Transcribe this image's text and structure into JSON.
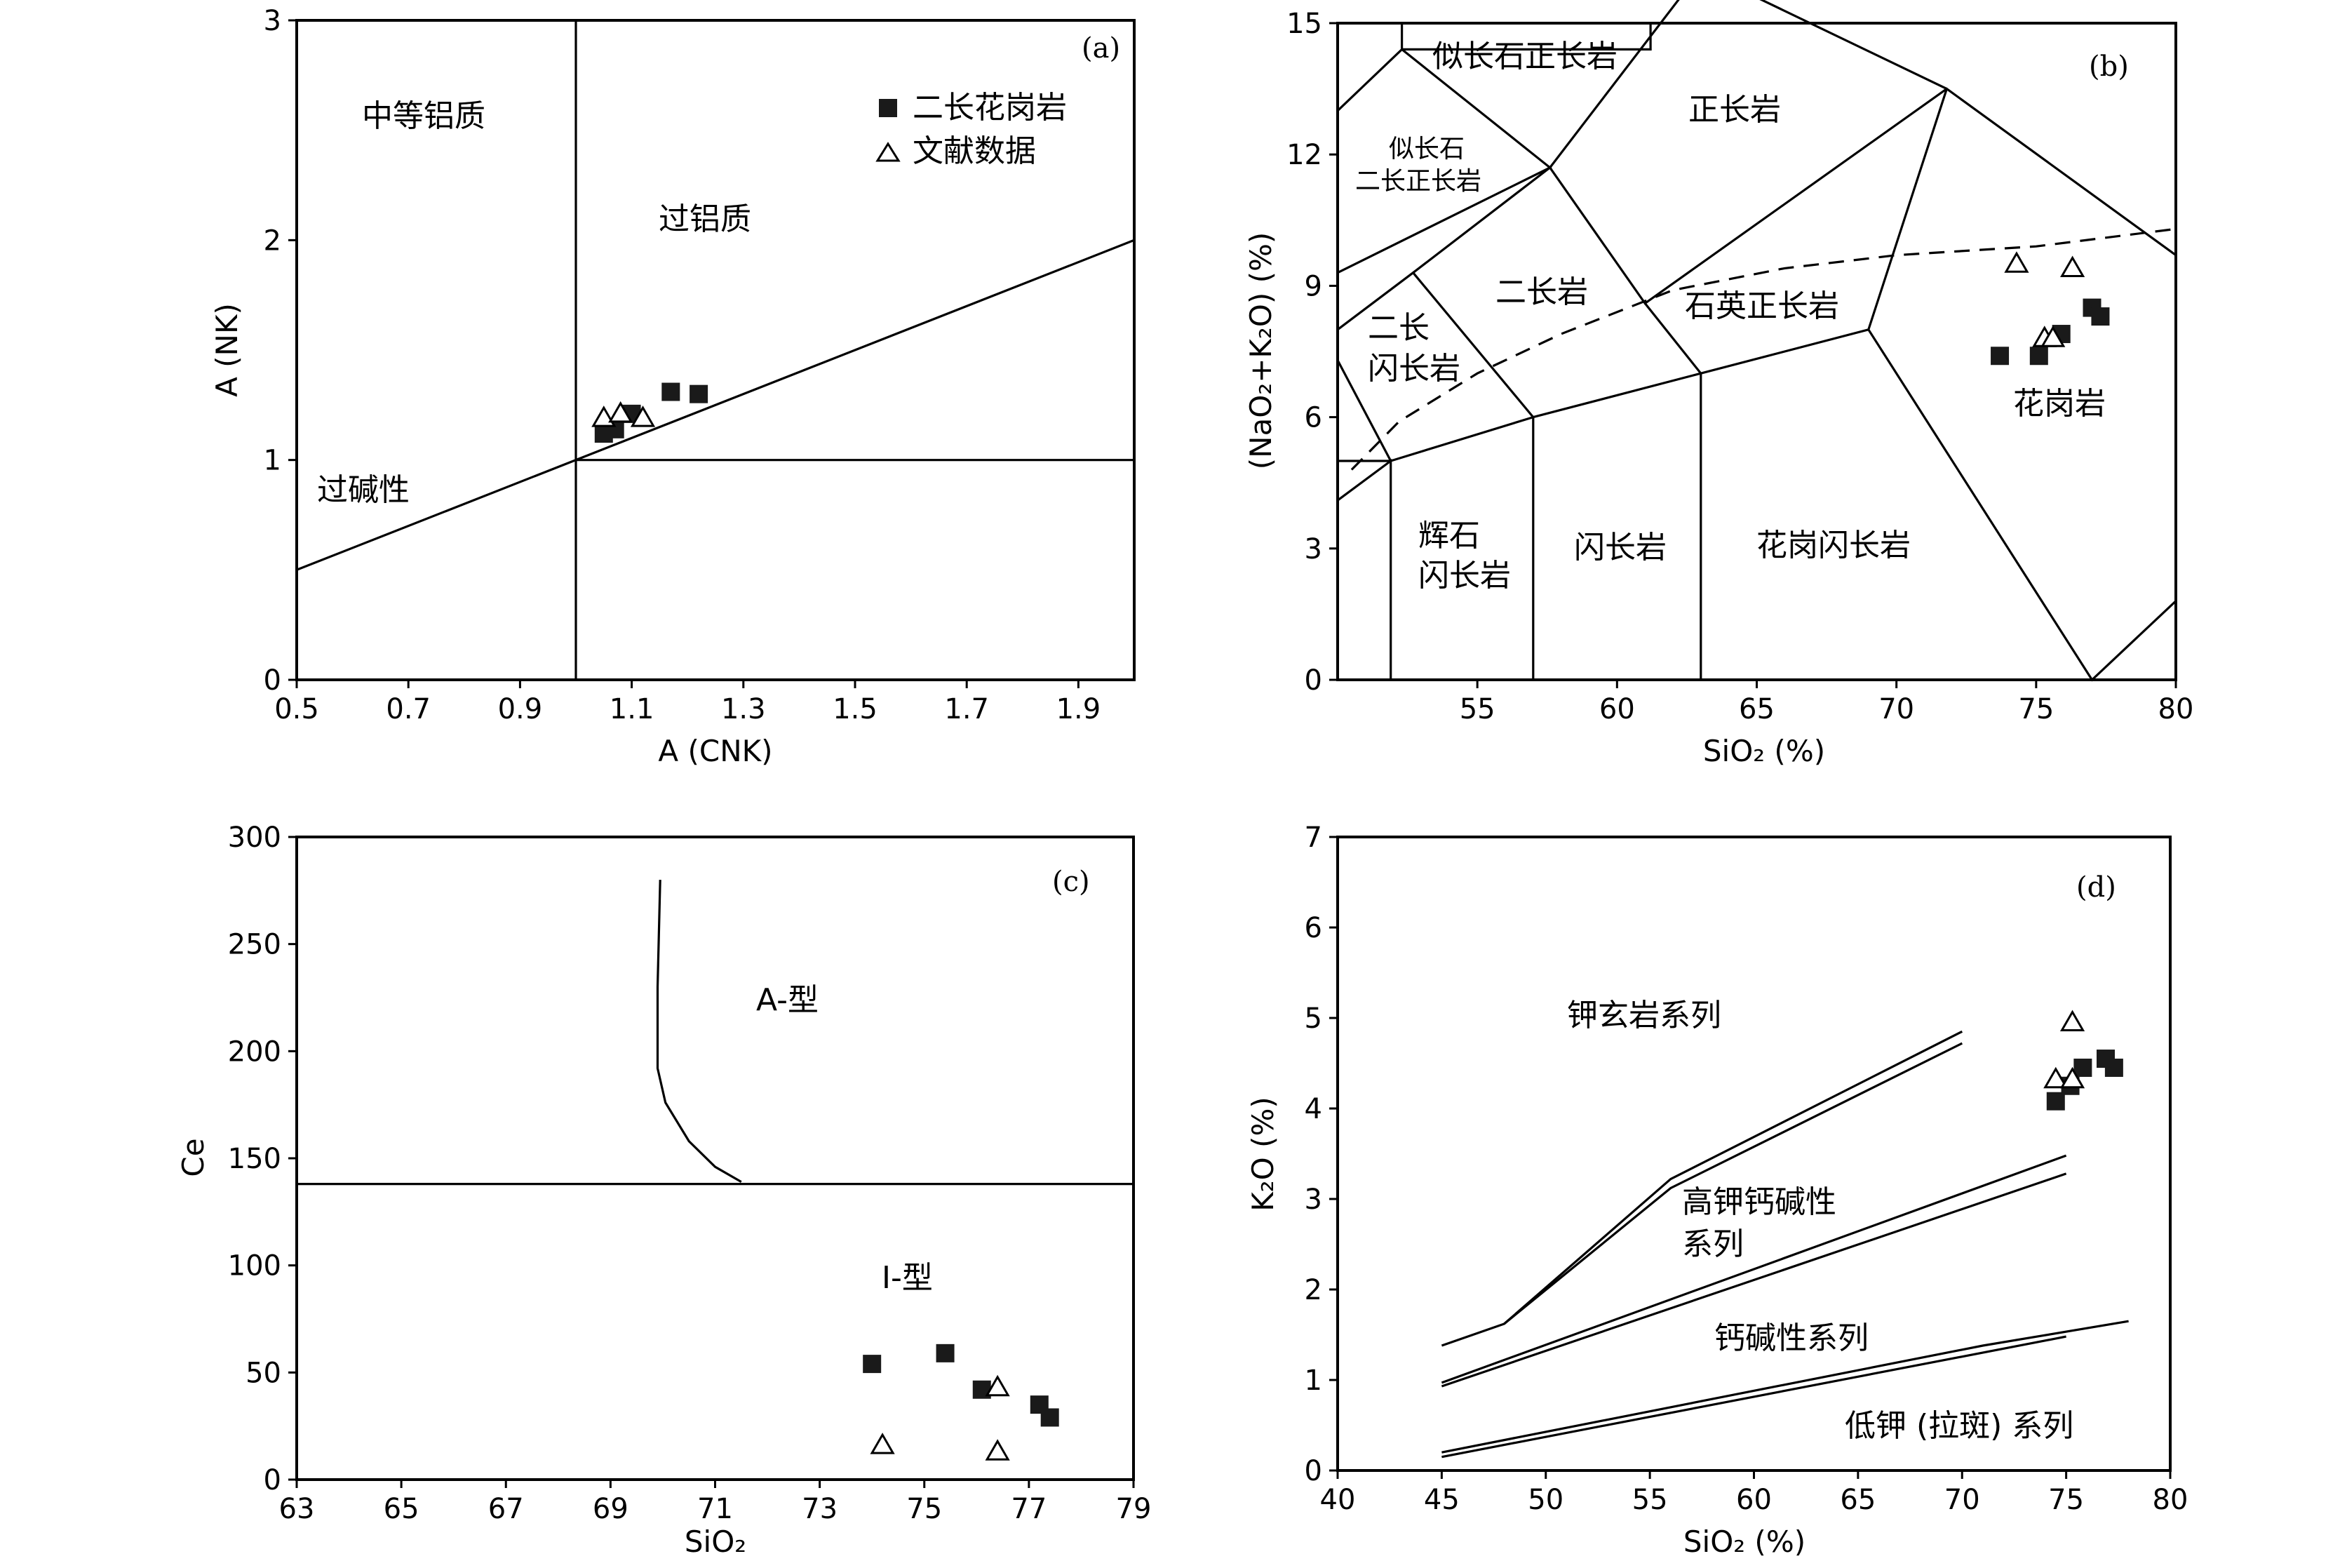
{
  "legend": {
    "granite": "二长花岗岩",
    "literature": "文献数据"
  },
  "chart_data": [
    {
      "id": "a",
      "type": "scatter",
      "panel_label": "(a)",
      "xlabel": "A (CNK)",
      "ylabel": "A (NK)",
      "xlim": [
        0.5,
        2.0
      ],
      "ylim": [
        0,
        3
      ],
      "xticks": [
        "0.5",
        "0.7",
        "0.9",
        "1.1",
        "1.3",
        "1.5",
        "1.7",
        "1.9"
      ],
      "yticks": [
        "0",
        "1",
        "2",
        "3"
      ],
      "regions": {
        "metaluminous": "中等铝质",
        "peraluminous": "过铝质",
        "peralkaline": "过碱性"
      },
      "series": [
        {
          "name": "二长花岗岩",
          "marker": "square",
          "points": [
            [
              1.05,
              1.12
            ],
            [
              1.07,
              1.14
            ],
            [
              1.1,
              1.21
            ],
            [
              1.17,
              1.31
            ],
            [
              1.22,
              1.3
            ]
          ]
        },
        {
          "name": "文献数据",
          "marker": "triangle",
          "points": [
            [
              1.05,
              1.19
            ],
            [
              1.08,
              1.21
            ],
            [
              1.12,
              1.19
            ]
          ]
        }
      ],
      "color": "#000000"
    },
    {
      "id": "b",
      "type": "scatter",
      "panel_label": "(b)",
      "xlabel": "SiO₂ (%)",
      "ylabel": "(NaO₂+K₂O) (%)",
      "xlim": [
        50,
        80
      ],
      "ylim": [
        0,
        15
      ],
      "xticks": [
        "55",
        "60",
        "65",
        "70",
        "75",
        "80"
      ],
      "yticks": [
        "0",
        "3",
        "6",
        "9",
        "12",
        "15"
      ],
      "fields": {
        "foid_syenite": "似长石正长岩",
        "foid_monzosyenite_1": "似长石",
        "foid_monzosyenite_2": "二长正长岩",
        "syenite": "正长岩",
        "monzonite": "二长岩",
        "quartz_syenite": "石英正长岩",
        "monzodiorite_1": "二长",
        "monzodiorite_2": "闪长岩",
        "granite": "花岗岩",
        "gabbrodiorite_1": "辉石",
        "gabbrodiorite_2": "闪长岩",
        "diorite": "闪长岩",
        "granodiorite": "花岗闪长岩"
      },
      "series": [
        {
          "name": "二长花岗岩",
          "marker": "square",
          "points": [
            [
              73.7,
              7.4
            ],
            [
              75.1,
              7.4
            ],
            [
              75.9,
              7.9
            ],
            [
              77.0,
              8.5
            ],
            [
              77.3,
              8.3
            ]
          ]
        },
        {
          "name": "文献数据",
          "marker": "triangle",
          "points": [
            [
              74.3,
              9.5
            ],
            [
              76.3,
              9.4
            ],
            [
              75.3,
              7.8
            ],
            [
              75.6,
              7.8
            ]
          ]
        }
      ],
      "color": "#000000"
    },
    {
      "id": "c",
      "type": "scatter",
      "panel_label": "(c)",
      "xlabel": "SiO₂",
      "ylabel": "Ce",
      "xlim": [
        63,
        79
      ],
      "ylim": [
        0,
        300
      ],
      "xticks": [
        "63",
        "65",
        "67",
        "69",
        "71",
        "73",
        "75",
        "77",
        "79"
      ],
      "yticks": [
        "0",
        "50",
        "100",
        "150",
        "200",
        "250",
        "300"
      ],
      "regions": {
        "a_type": "A-型",
        "i_type": "I-型"
      },
      "series": [
        {
          "name": "二长花岗岩",
          "marker": "square",
          "points": [
            [
              74.0,
              54
            ],
            [
              75.4,
              59
            ],
            [
              76.1,
              42
            ],
            [
              77.2,
              35
            ],
            [
              77.4,
              29
            ]
          ]
        },
        {
          "name": "文献数据",
          "marker": "triangle",
          "points": [
            [
              74.2,
              16
            ],
            [
              76.4,
              43
            ],
            [
              76.4,
              13
            ]
          ]
        }
      ],
      "color": "#000000"
    },
    {
      "id": "d",
      "type": "scatter",
      "panel_label": "(d)",
      "xlabel": "SiO₂ (%)",
      "ylabel": "K₂O (%)",
      "xlim": [
        40,
        80
      ],
      "ylim": [
        0,
        7
      ],
      "xticks": [
        "40",
        "45",
        "50",
        "55",
        "60",
        "65",
        "70",
        "75",
        "80"
      ],
      "yticks": [
        "0",
        "1",
        "2",
        "3",
        "4",
        "5",
        "6",
        "7"
      ],
      "series_labels": {
        "shoshonite": "钾玄岩系列",
        "high_k_1": "高钾钙碱性",
        "high_k_2": "系列",
        "calc_alkaline": "钙碱性系列",
        "low_k": "低钾 (拉斑) 系列"
      },
      "series": [
        {
          "name": "二长花岗岩",
          "marker": "square",
          "points": [
            [
              74.5,
              4.08
            ],
            [
              75.2,
              4.25
            ],
            [
              75.8,
              4.45
            ],
            [
              76.9,
              4.55
            ],
            [
              77.3,
              4.45
            ]
          ]
        },
        {
          "name": "文献数据",
          "marker": "triangle",
          "points": [
            [
              75.3,
              4.95
            ],
            [
              74.5,
              4.32
            ],
            [
              75.3,
              4.32
            ]
          ]
        }
      ],
      "color": "#000000"
    }
  ]
}
